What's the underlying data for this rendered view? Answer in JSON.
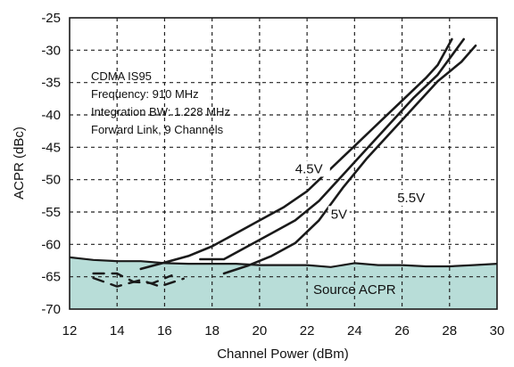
{
  "chart_data": {
    "type": "line",
    "title": "",
    "xlabel": "Channel Power (dBm)",
    "ylabel": "ACPR (dBc)",
    "xlim": [
      12,
      30
    ],
    "ylim": [
      -70,
      -25
    ],
    "xticks": [
      "12",
      "14",
      "16",
      "18",
      "20",
      "22",
      "24",
      "26",
      "28",
      "30"
    ],
    "yticks": [
      "-25",
      "-30",
      "-35",
      "-40",
      "-45",
      "-50",
      "-55",
      "-60",
      "-65",
      "-70"
    ],
    "grid": true,
    "annotations": [
      "CDMA IS95",
      "Frequency: 910 MHz",
      "Integration BW: 1.228 MHz",
      "Forward Link, 9 Channels"
    ],
    "series": [
      {
        "name": "4.5V",
        "style": "solid",
        "points": [
          [
            15,
            -63.8
          ],
          [
            16,
            -62.8
          ],
          [
            17,
            -61.8
          ],
          [
            18,
            -60.3
          ],
          [
            19,
            -58.3
          ],
          [
            20,
            -56.3
          ],
          [
            21,
            -54.3
          ],
          [
            22,
            -51.8
          ],
          [
            23,
            -48.3
          ],
          [
            24,
            -44.8
          ],
          [
            25,
            -41.3
          ],
          [
            26,
            -37.8
          ],
          [
            27,
            -34.3
          ],
          [
            27.5,
            -32.3
          ],
          [
            28.1,
            -28.3
          ]
        ]
      },
      {
        "name": "5V",
        "style": "solid",
        "points": [
          [
            17.5,
            -62.3
          ],
          [
            18.5,
            -62.3
          ],
          [
            19.5,
            -60.3
          ],
          [
            20.5,
            -58.3
          ],
          [
            21.5,
            -56.3
          ],
          [
            22.5,
            -53.3
          ],
          [
            23.5,
            -49.3
          ],
          [
            24.5,
            -45.3
          ],
          [
            25.5,
            -41.3
          ],
          [
            26.5,
            -37.3
          ],
          [
            27.5,
            -33.8
          ],
          [
            28.6,
            -28.3
          ]
        ]
      },
      {
        "name": "5.5V",
        "style": "solid",
        "points": [
          [
            18.5,
            -64.5
          ],
          [
            19.5,
            -63.3
          ],
          [
            20.5,
            -61.8
          ],
          [
            21.5,
            -59.8
          ],
          [
            22.5,
            -56.3
          ],
          [
            23.5,
            -51.3
          ],
          [
            24.5,
            -46.8
          ],
          [
            25.5,
            -42.8
          ],
          [
            26.5,
            -38.8
          ],
          [
            27.5,
            -34.8
          ],
          [
            28.5,
            -31.8
          ],
          [
            29.1,
            -29.3
          ]
        ]
      },
      {
        "name": "low-power-dashed-1",
        "style": "dashed",
        "points": [
          [
            13,
            -64.5
          ],
          [
            14,
            -64.5
          ],
          [
            14.7,
            -65.8
          ],
          [
            15.5,
            -66.0
          ],
          [
            16.3,
            -64.8
          ]
        ]
      },
      {
        "name": "low-power-dashed-2",
        "style": "dashed",
        "points": [
          [
            13,
            -65.2
          ],
          [
            14,
            -66.5
          ],
          [
            15,
            -65.5
          ],
          [
            15.8,
            -66.5
          ],
          [
            16.8,
            -65.3
          ]
        ]
      },
      {
        "name": "Source ACPR",
        "style": "source",
        "points": [
          [
            12,
            -62
          ],
          [
            13,
            -62.4
          ],
          [
            14,
            -62.6
          ],
          [
            15,
            -62.6
          ],
          [
            16,
            -62.9
          ],
          [
            17,
            -63
          ],
          [
            18,
            -63
          ],
          [
            19,
            -63
          ],
          [
            20,
            -63.2
          ],
          [
            21,
            -63.2
          ],
          [
            22,
            -63.2
          ],
          [
            23,
            -63.5
          ],
          [
            24,
            -62.9
          ],
          [
            25,
            -63.2
          ],
          [
            26,
            -63.2
          ],
          [
            27,
            -63.4
          ],
          [
            28,
            -63.4
          ],
          [
            29,
            -63.2
          ],
          [
            30,
            -63
          ]
        ]
      }
    ],
    "curve_labels": [
      {
        "text": "4.5V",
        "x": 21.5,
        "y": -49
      },
      {
        "text": "5V",
        "x": 23.0,
        "y": -56
      },
      {
        "text": "5.5V",
        "x": 25.8,
        "y": -53.5
      }
    ],
    "region_label": {
      "text": "Source ACPR",
      "x": 24.0,
      "y": -67
    },
    "colors": {
      "fill": "#b8ddd8",
      "line": "#1a1a1a",
      "grid": "#222222"
    }
  }
}
